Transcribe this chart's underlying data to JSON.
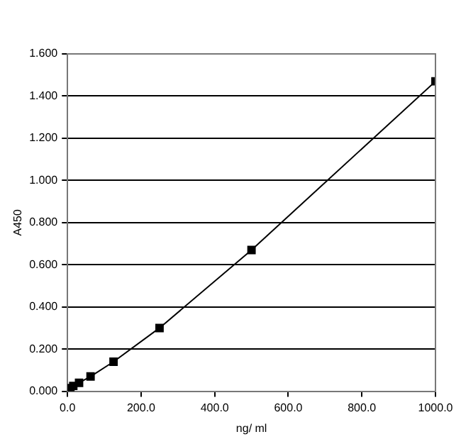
{
  "chart_data": {
    "type": "line",
    "xlabel": "ng/ ml",
    "ylabel": "A450",
    "x": [
      7.8,
      15.6,
      31.3,
      62.5,
      125,
      250,
      500,
      1000
    ],
    "series": [
      {
        "color": "#000000",
        "values": [
          0.015,
          0.025,
          0.04,
          0.07,
          0.14,
          0.3,
          0.67,
          1.47
        ]
      }
    ],
    "xlim": [
      0,
      1000
    ],
    "xticks": [
      {
        "value": 0,
        "label": "0.0"
      },
      {
        "value": 200,
        "label": "200.0"
      },
      {
        "value": 400,
        "label": "400.0"
      },
      {
        "value": 600,
        "label": "600.0"
      },
      {
        "value": 800,
        "label": "800.0"
      },
      {
        "value": 1000,
        "label": "1000.0"
      }
    ],
    "ylim": [
      0,
      1.6
    ],
    "yticks": [
      {
        "value": 0,
        "label": "0.000"
      },
      {
        "value": 0.2,
        "label": "0.200"
      },
      {
        "value": 0.4,
        "label": "0.400"
      },
      {
        "value": 0.6,
        "label": "0.600"
      },
      {
        "value": 0.8,
        "label": "0.800"
      },
      {
        "value": 1,
        "label": "1.000"
      },
      {
        "value": 1.2,
        "label": "1.200"
      },
      {
        "value": 1.4,
        "label": "1.400"
      },
      {
        "value": 1.6,
        "label": "1.600"
      }
    ],
    "grid": "y",
    "legend": false,
    "marker": "square",
    "line_style": "solid"
  }
}
